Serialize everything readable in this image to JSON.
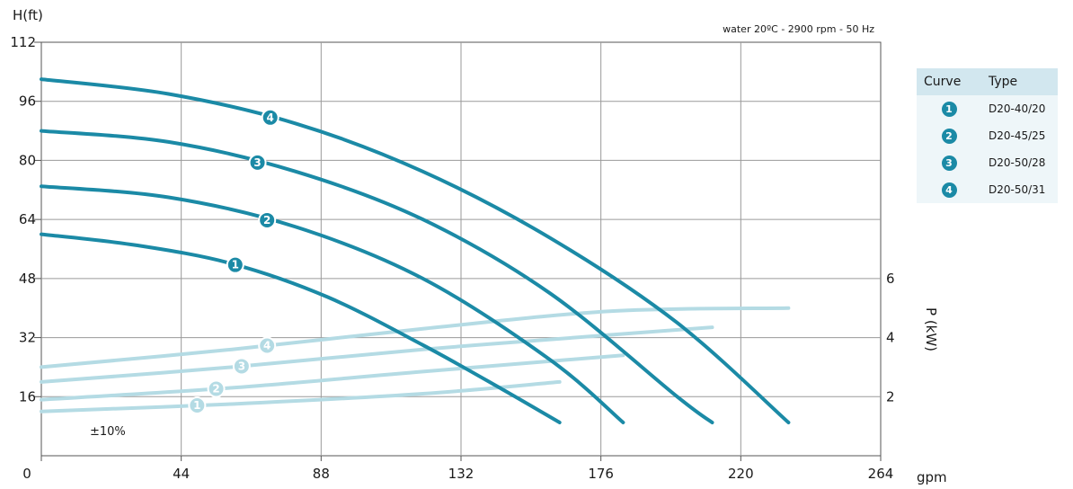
{
  "chart_data": {
    "type": "line",
    "y_title": "H(ft)",
    "y2_title": "P (kW)",
    "x_unit": "gpm",
    "condition": "water 20ºC - 2900 rpm - 50 Hz",
    "tolerance": "±10%",
    "x_ticks": [
      "0",
      "44",
      "88",
      "132",
      "176",
      "220",
      "264"
    ],
    "y_ticks": [
      "16",
      "32",
      "48",
      "64",
      "80",
      "96",
      "112"
    ],
    "y2_ticks": [
      "2",
      "4",
      "6"
    ],
    "xlim": [
      0,
      264
    ],
    "ylim": [
      0,
      112
    ],
    "y2lim": [
      0,
      14
    ],
    "head_color": "#1b8aa6",
    "power_color": "#b4dbe4",
    "head_series": [
      {
        "name": "1",
        "x": [
          0,
          30,
          60,
          90,
          120,
          145,
          163
        ],
        "y": [
          60,
          57,
          52,
          43,
          30,
          18,
          9
        ]
      },
      {
        "name": "2",
        "x": [
          0,
          40,
          80,
          120,
          160,
          183
        ],
        "y": [
          73,
          70,
          62,
          48,
          26,
          9
        ]
      },
      {
        "name": "3",
        "x": [
          0,
          40,
          80,
          120,
          160,
          200,
          211
        ],
        "y": [
          88,
          85,
          77,
          64,
          44,
          16,
          9
        ]
      },
      {
        "name": "4",
        "x": [
          0,
          40,
          80,
          120,
          160,
          200,
          235
        ],
        "y": [
          102,
          98,
          90,
          77,
          59,
          36,
          9
        ]
      }
    ],
    "power_series": [
      {
        "name": "1",
        "x": [
          0,
          60,
          120,
          163
        ],
        "y": [
          1.5,
          1.75,
          2.1,
          2.5
        ]
      },
      {
        "name": "2",
        "x": [
          0,
          60,
          120,
          183
        ],
        "y": [
          1.9,
          2.3,
          2.85,
          3.4
        ]
      },
      {
        "name": "3",
        "x": [
          0,
          60,
          120,
          180,
          211
        ],
        "y": [
          2.5,
          3.0,
          3.6,
          4.1,
          4.35
        ]
      },
      {
        "name": "4",
        "x": [
          0,
          60,
          120,
          180,
          235
        ],
        "y": [
          3.0,
          3.6,
          4.3,
          4.9,
          5.0
        ]
      }
    ],
    "head_label_x": [
      61,
      71,
      68,
      72
    ],
    "power_label_x": [
      49,
      55,
      63,
      71
    ]
  },
  "legend": {
    "header_curve": "Curve",
    "header_type": "Type",
    "rows": [
      {
        "num": "1",
        "type": "D20-40/20"
      },
      {
        "num": "2",
        "type": "D20-45/25"
      },
      {
        "num": "3",
        "type": "D20-50/28"
      },
      {
        "num": "4",
        "type": "D20-50/31"
      }
    ]
  }
}
